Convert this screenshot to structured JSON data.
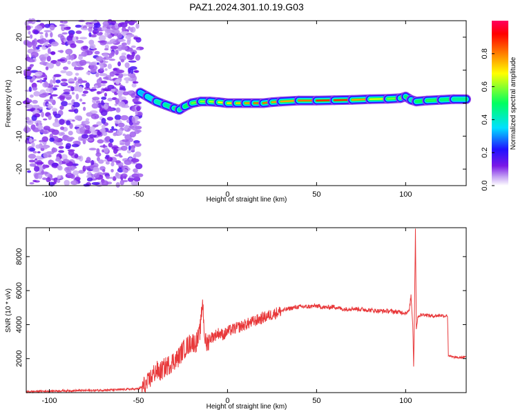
{
  "title": "PAZ1.2024.301.10.19.G03",
  "chart_data": [
    {
      "type": "heatmap",
      "xlabel": "Height of straight line (km)",
      "ylabel": "Frequency (Hz)",
      "xlim": [
        -113,
        134
      ],
      "ylim": [
        -25,
        25
      ],
      "xticks": [
        -100,
        -50,
        0,
        50,
        100
      ],
      "yticks": [
        -20,
        -10,
        0,
        10,
        20
      ],
      "colorbar": {
        "label": "Normalized spectral amplitude",
        "range": [
          0,
          1
        ],
        "ticks": [
          0.0,
          0.2,
          0.4,
          0.6,
          0.8
        ],
        "colors": [
          "#ffffff",
          "#c8a8f4",
          "#7a18e6",
          "#2010ff",
          "#00e0ff",
          "#00ff60",
          "#ffff00",
          "#ff8000",
          "#ff0000",
          "#ff0060"
        ]
      },
      "noise_region": {
        "x_range": [
          -113,
          -49
        ],
        "y_range": [
          -25,
          25
        ],
        "amplitude": 0.2
      },
      "ridge": [
        {
          "x": -49,
          "f": 3.2,
          "amp": 0.3
        },
        {
          "x": -45,
          "f": 2.0,
          "amp": 0.35
        },
        {
          "x": -40,
          "f": 0.5,
          "amp": 0.4
        },
        {
          "x": -35,
          "f": -0.5,
          "amp": 0.45
        },
        {
          "x": -30,
          "f": -1.5,
          "amp": 0.45
        },
        {
          "x": -27,
          "f": -2.0,
          "amp": 0.5
        },
        {
          "x": -24,
          "f": -1.0,
          "amp": 0.45
        },
        {
          "x": -20,
          "f": 0.0,
          "amp": 0.55
        },
        {
          "x": -15,
          "f": 0.5,
          "amp": 0.6
        },
        {
          "x": -10,
          "f": 0.5,
          "amp": 0.6
        },
        {
          "x": -5,
          "f": 0.3,
          "amp": 0.65
        },
        {
          "x": 0,
          "f": 0.0,
          "amp": 0.7
        },
        {
          "x": 5,
          "f": 0.0,
          "amp": 0.72
        },
        {
          "x": 10,
          "f": 0.0,
          "amp": 0.75
        },
        {
          "x": 15,
          "f": 0.0,
          "amp": 0.8
        },
        {
          "x": 20,
          "f": 0.0,
          "amp": 0.85
        },
        {
          "x": 25,
          "f": 0.3,
          "amp": 0.8
        },
        {
          "x": 30,
          "f": 0.5,
          "amp": 0.75
        },
        {
          "x": 40,
          "f": 0.8,
          "amp": 0.78
        },
        {
          "x": 50,
          "f": 0.8,
          "amp": 0.85
        },
        {
          "x": 60,
          "f": 0.9,
          "amp": 0.92
        },
        {
          "x": 70,
          "f": 1.0,
          "amp": 0.85
        },
        {
          "x": 80,
          "f": 1.2,
          "amp": 0.7
        },
        {
          "x": 90,
          "f": 1.3,
          "amp": 0.6
        },
        {
          "x": 97,
          "f": 1.5,
          "amp": 0.55
        },
        {
          "x": 100,
          "f": 2.0,
          "amp": 0.6
        },
        {
          "x": 103,
          "f": 1.0,
          "amp": 0.4
        },
        {
          "x": 106,
          "f": 0.5,
          "amp": 0.45
        },
        {
          "x": 112,
          "f": 0.8,
          "amp": 0.55
        },
        {
          "x": 120,
          "f": 1.0,
          "amp": 0.5
        },
        {
          "x": 127,
          "f": 1.2,
          "amp": 0.45
        },
        {
          "x": 134,
          "f": 1.2,
          "amp": 0.45
        }
      ]
    },
    {
      "type": "line",
      "xlabel": "Height of straight line (km)",
      "ylabel": "SNR (10 * v/v)",
      "xlim": [
        -113,
        134
      ],
      "ylim": [
        0,
        9700
      ],
      "xticks": [
        -100,
        -50,
        0,
        50,
        100
      ],
      "yticks": [
        2000,
        4000,
        6000,
        8000
      ],
      "color": "#e8383a",
      "x": [
        -113,
        -105,
        -95,
        -85,
        -75,
        -65,
        -55,
        -50,
        -45,
        -43,
        -40,
        -38,
        -35,
        -32,
        -30,
        -28,
        -25,
        -22,
        -20,
        -18,
        -16,
        -15,
        -14,
        -13,
        -12,
        -10,
        -8,
        -5,
        -2,
        0,
        5,
        10,
        15,
        20,
        25,
        30,
        35,
        40,
        45,
        50,
        55,
        60,
        65,
        70,
        75,
        80,
        85,
        90,
        95,
        100,
        102,
        103,
        104,
        104.5,
        105,
        105.5,
        106,
        107,
        110,
        115,
        120,
        122,
        123,
        123.5,
        124,
        126,
        130,
        134
      ],
      "y": [
        50,
        80,
        100,
        120,
        130,
        160,
        200,
        220,
        500,
        900,
        1300,
        1200,
        1500,
        1700,
        1900,
        2000,
        2500,
        2800,
        3000,
        2900,
        3300,
        4000,
        5500,
        3500,
        2800,
        3200,
        3300,
        3500,
        3400,
        3600,
        3800,
        4000,
        4200,
        4400,
        4600,
        4800,
        4950,
        5050,
        5050,
        5100,
        5000,
        5050,
        4900,
        4950,
        4900,
        4850,
        4800,
        4800,
        4750,
        4700,
        4800,
        5700,
        4000,
        1600,
        5000,
        9700,
        3800,
        4500,
        4600,
        4500,
        4550,
        4500,
        4550,
        4500,
        2200,
        2100,
        2050,
        2100
      ]
    }
  ]
}
